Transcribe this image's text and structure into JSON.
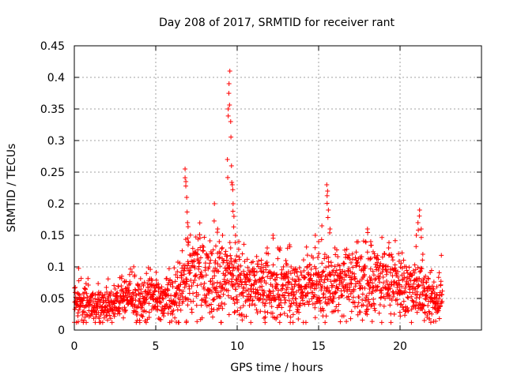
{
  "chart_data": {
    "type": "scatter",
    "title": "Day 208 of 2017, SRMTID for receiver rant",
    "xlabel": "GPS time / hours",
    "ylabel": "SRMTID / TECUs",
    "xlim": [
      0,
      25
    ],
    "ylim": [
      0,
      0.45
    ],
    "xticks": [
      0,
      5,
      10,
      15,
      20
    ],
    "xtick_labels": [
      "0",
      "5",
      "10",
      "15",
      "20"
    ],
    "yticks": [
      0,
      0.05,
      0.1,
      0.15,
      0.2,
      0.25,
      0.3,
      0.35,
      0.4,
      0.45
    ],
    "ytick_labels": [
      "0",
      "0.05",
      "0.1",
      "0.15",
      "0.2",
      "0.25",
      "0.3",
      "0.35",
      "0.4",
      "0.45"
    ],
    "grid": true,
    "marker": "+",
    "color": "#ff0000",
    "series": [
      {
        "name": "SRMTID",
        "trend": [
          [
            0.0,
            0.045
          ],
          [
            0.5,
            0.04
          ],
          [
            1.0,
            0.035
          ],
          [
            1.5,
            0.033
          ],
          [
            2.0,
            0.04
          ],
          [
            2.5,
            0.045
          ],
          [
            3.0,
            0.05
          ],
          [
            3.5,
            0.055
          ],
          [
            4.0,
            0.05
          ],
          [
            4.5,
            0.055
          ],
          [
            5.0,
            0.055
          ],
          [
            5.5,
            0.05
          ],
          [
            6.0,
            0.05
          ],
          [
            6.5,
            0.06
          ],
          [
            7.0,
            0.095
          ],
          [
            7.5,
            0.1
          ],
          [
            8.0,
            0.09
          ],
          [
            8.5,
            0.075
          ],
          [
            9.0,
            0.08
          ],
          [
            9.5,
            0.09
          ],
          [
            10.0,
            0.07
          ],
          [
            11.0,
            0.065
          ],
          [
            12.0,
            0.065
          ],
          [
            13.0,
            0.07
          ],
          [
            14.0,
            0.065
          ],
          [
            15.0,
            0.065
          ],
          [
            16.0,
            0.07
          ],
          [
            17.0,
            0.075
          ],
          [
            18.0,
            0.08
          ],
          [
            19.0,
            0.08
          ],
          [
            20.0,
            0.065
          ],
          [
            21.0,
            0.06
          ],
          [
            22.0,
            0.05
          ],
          [
            22.6,
            0.05
          ]
        ],
        "spikes": [
          [
            6.8,
            0.255
          ],
          [
            6.85,
            0.235
          ],
          [
            6.9,
            0.21
          ],
          [
            6.95,
            0.17
          ],
          [
            7.0,
            0.14
          ],
          [
            8.6,
            0.2
          ],
          [
            8.8,
            0.16
          ],
          [
            8.9,
            0.14
          ],
          [
            9.1,
            0.15
          ],
          [
            9.4,
            0.27
          ],
          [
            9.45,
            0.35
          ],
          [
            9.5,
            0.39
          ],
          [
            9.55,
            0.41
          ],
          [
            9.6,
            0.33
          ],
          [
            9.65,
            0.26
          ],
          [
            9.7,
            0.23
          ],
          [
            9.75,
            0.2
          ],
          [
            9.8,
            0.18
          ],
          [
            9.9,
            0.15
          ],
          [
            10.1,
            0.14
          ],
          [
            12.2,
            0.15
          ],
          [
            12.5,
            0.13
          ],
          [
            14.8,
            0.15
          ],
          [
            15.0,
            0.14
          ],
          [
            15.2,
            0.165
          ],
          [
            15.5,
            0.23
          ],
          [
            15.55,
            0.22
          ],
          [
            15.6,
            0.19
          ],
          [
            15.7,
            0.16
          ],
          [
            16.0,
            0.13
          ],
          [
            18.0,
            0.16
          ],
          [
            18.2,
            0.14
          ],
          [
            19.3,
            0.13
          ],
          [
            21.0,
            0.15
          ],
          [
            21.1,
            0.17
          ],
          [
            21.2,
            0.19
          ],
          [
            21.3,
            0.16
          ],
          [
            21.4,
            0.12
          ]
        ]
      }
    ]
  }
}
